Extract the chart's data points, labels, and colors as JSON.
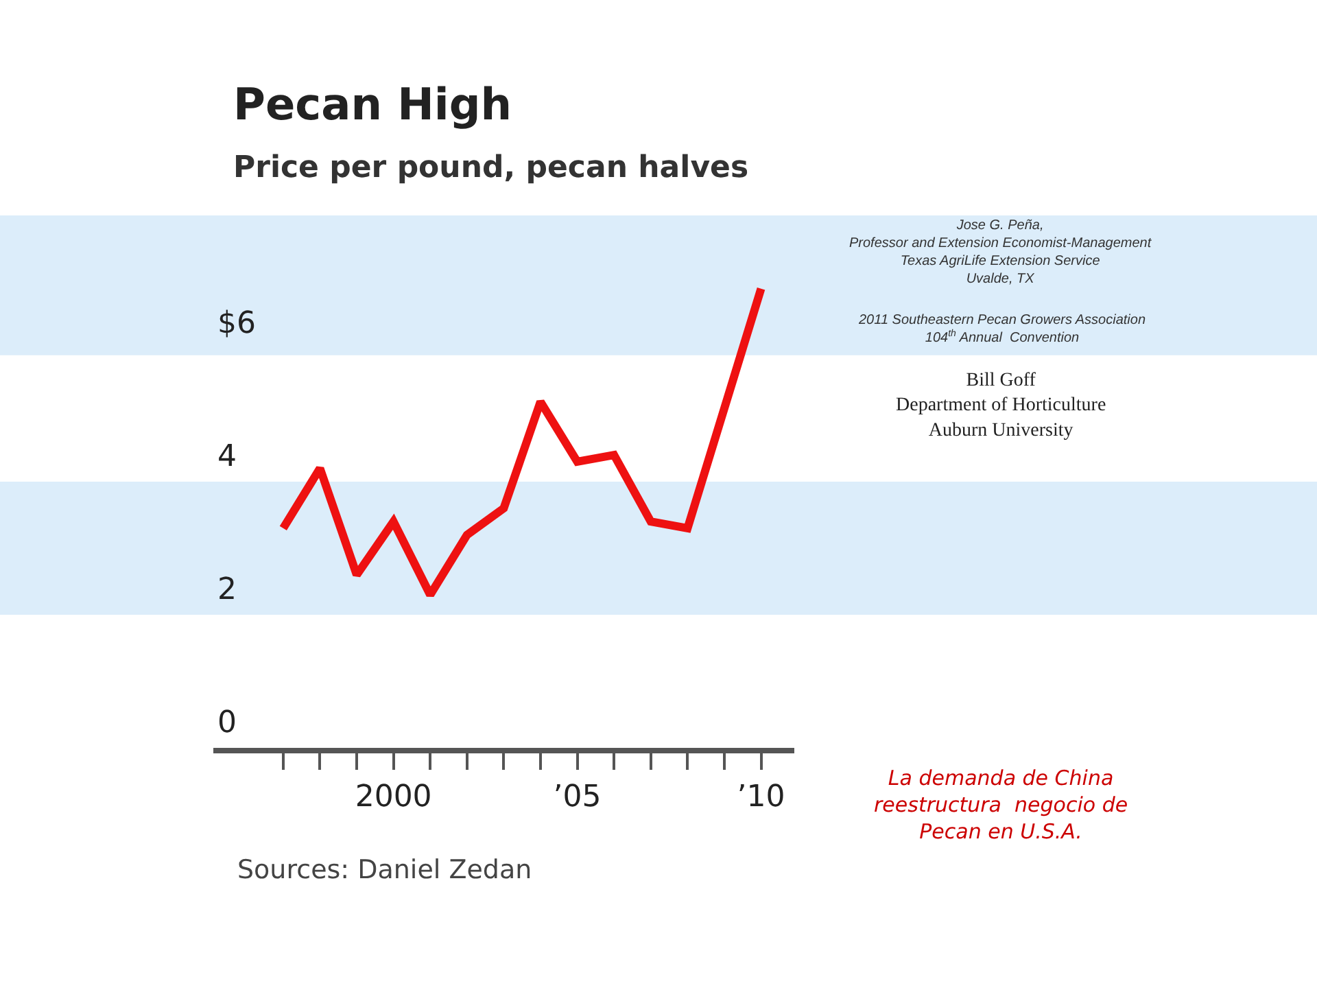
{
  "chart_data": {
    "type": "line",
    "title": "Pecan High",
    "subtitle": "Price per pound, pecan halves",
    "x": [
      1997,
      1998,
      1999,
      2000,
      2001,
      2002,
      2003,
      2004,
      2005,
      2006,
      2007,
      2008,
      2010
    ],
    "series": [
      {
        "color": "#ee1111",
        "values": [
          2.9,
          3.8,
          2.2,
          3.0,
          1.9,
          2.8,
          3.2,
          4.8,
          3.9,
          4.0,
          3.0,
          2.9,
          6.5
        ]
      }
    ],
    "xlim": [
      1995.1,
      2010.9
    ],
    "xticks": [
      {
        "value": 1997,
        "label": null
      },
      {
        "value": 1998,
        "label": null
      },
      {
        "value": 1999,
        "label": null
      },
      {
        "value": 2000,
        "label": "2000"
      },
      {
        "value": 2001,
        "label": null
      },
      {
        "value": 2002,
        "label": null
      },
      {
        "value": 2003,
        "label": null
      },
      {
        "value": 2004,
        "label": null
      },
      {
        "value": 2005,
        "label": "’05"
      },
      {
        "value": 2006,
        "label": null
      },
      {
        "value": 2007,
        "label": null
      },
      {
        "value": 2008,
        "label": null
      },
      {
        "value": 2009,
        "label": null
      },
      {
        "value": 2010,
        "label": "’10"
      }
    ],
    "ylim": [
      -0.4,
      7.6
    ],
    "yticks": [
      0,
      2,
      4,
      {
        "value": 6,
        "label": "$6"
      }
    ],
    "bands": [
      {
        "axis": "y",
        "from": 1.6,
        "to": 3.6,
        "color": "#dcedfa"
      },
      {
        "axis": "y",
        "from": 5.5,
        "to": 7.6,
        "color": "#dcedfa"
      }
    ],
    "grid": false,
    "legend": false,
    "marker": "none",
    "line_style": "solid",
    "annotations": [
      "Sources: Daniel Zedan",
      "Jose G. Peña,\nProfessor and Extension Economist-Management\nTexas AgriLife Extension Service\nUvalde, TX",
      "2011 Southeastern Pecan Growers Association\n104$^{th}$ Annual  Convention",
      "Bill Goff\nDepartment of Horticulture\nAuburn University",
      "La demanda de China\nreestructura  negocio de\nPecan en U.S.A."
    ]
  }
}
